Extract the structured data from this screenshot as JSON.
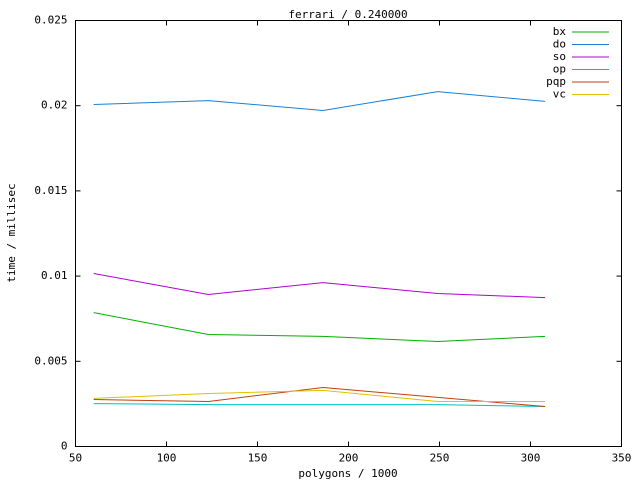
{
  "chart_data": {
    "type": "line",
    "title": "ferrari / 0.240000",
    "x_label": "polygons / 1000",
    "y_label": "time / millisec",
    "x": [
      60,
      123,
      186,
      249,
      308
    ],
    "series": [
      {
        "name": "bx",
        "color": "#00b000",
        "values": [
          0.00786,
          0.00657,
          0.00646,
          0.00616,
          0.00646
        ]
      },
      {
        "name": "do",
        "color": "#1a7fd4",
        "values": [
          0.02007,
          0.0203,
          0.01972,
          0.02083,
          0.02025
        ]
      },
      {
        "name": "so",
        "color": "#b000d0",
        "values": [
          0.01015,
          0.00892,
          0.00962,
          0.00898,
          0.00874
        ]
      },
      {
        "name": "op",
        "color": "#00c0c0",
        "values": [
          0.00252,
          0.00246,
          0.00246,
          0.00246,
          0.00235
        ]
      },
      {
        "name": "pqp",
        "color": "#c04010",
        "values": [
          0.00276,
          0.00264,
          0.00346,
          0.00288,
          0.00235
        ]
      },
      {
        "name": "vc",
        "color": "#e0c000",
        "values": [
          0.00282,
          0.00311,
          0.00329,
          0.00264,
          0.00264
        ]
      }
    ],
    "xlim": [
      50,
      350
    ],
    "xticks": [
      50,
      100,
      150,
      200,
      250,
      300,
      350
    ],
    "ylim": [
      0,
      0.025
    ],
    "yticks": [
      0,
      0.005,
      0.01,
      0.015,
      0.02,
      0.025
    ],
    "grid": false,
    "legend": "top-right"
  }
}
